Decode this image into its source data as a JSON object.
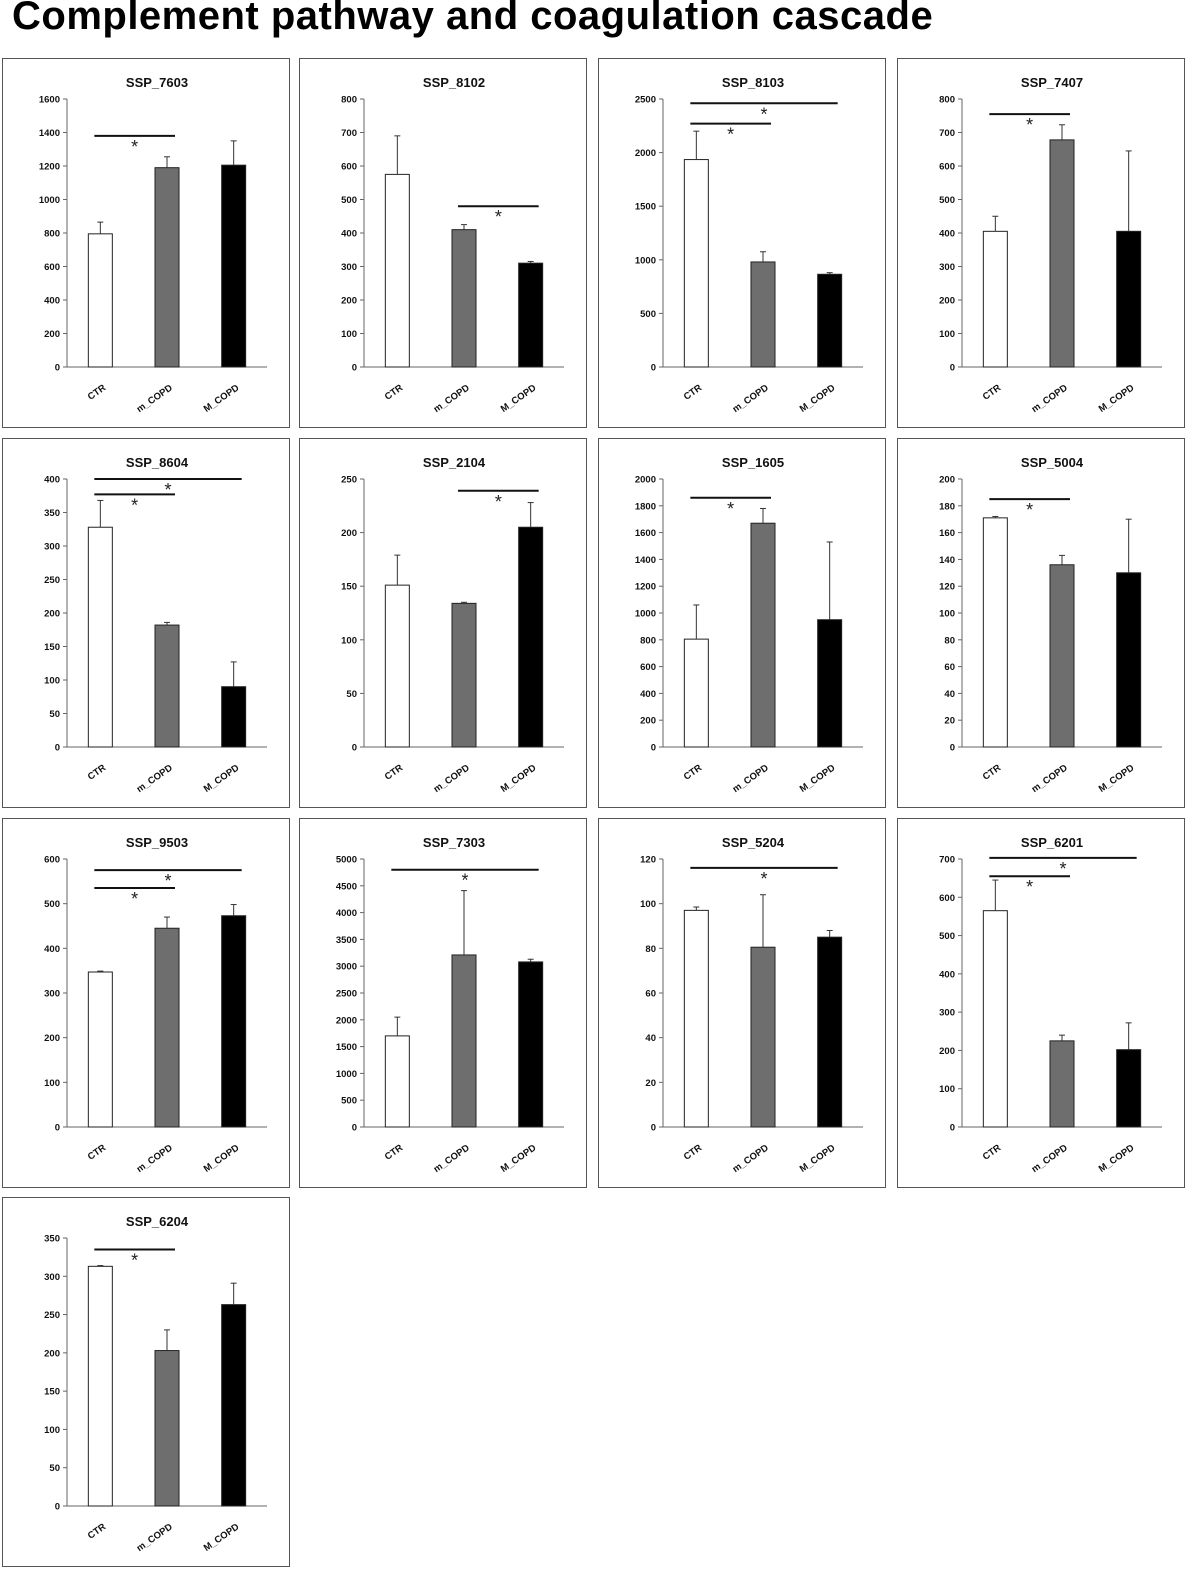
{
  "title": "Complement pathway and coagulation cascade",
  "bar_colors": {
    "CTR": "#ffffff",
    "m_COPD": "#6e6e6e",
    "M_COPD": "#000000"
  },
  "chart_data": [
    {
      "type": "bar",
      "title": "SSP_7603",
      "categories": [
        "CTR",
        "m_COPD",
        "M_COPD"
      ],
      "values": [
        795,
        1190,
        1205
      ],
      "errors": [
        70,
        65,
        145
      ],
      "ylim": [
        0,
        1600
      ],
      "yticks": [
        0,
        200,
        400,
        600,
        800,
        1000,
        1200,
        1400,
        1600
      ],
      "significance": [
        {
          "from": 0,
          "to": 1,
          "y": 1380,
          "label": "*"
        }
      ]
    },
    {
      "type": "bar",
      "title": "SSP_8102",
      "categories": [
        "CTR",
        "m_COPD",
        "M_COPD"
      ],
      "values": [
        575,
        410,
        310
      ],
      "errors": [
        115,
        15,
        5
      ],
      "ylim": [
        0,
        800
      ],
      "yticks": [
        0,
        100,
        200,
        300,
        400,
        500,
        600,
        700,
        800
      ],
      "significance": [
        {
          "from": 1,
          "to": 2,
          "y": 480,
          "label": "*"
        }
      ]
    },
    {
      "type": "bar",
      "title": "SSP_8103",
      "categories": [
        "CTR",
        "m_COPD",
        "M_COPD"
      ],
      "values": [
        1935,
        980,
        865
      ],
      "errors": [
        265,
        95,
        15
      ],
      "ylim": [
        0,
        2500
      ],
      "yticks": [
        0,
        500,
        1000,
        1500,
        2000,
        2500
      ],
      "significance": [
        {
          "from": 0,
          "to": 1,
          "y": 2270,
          "label": "*"
        },
        {
          "from": 0,
          "to": 2,
          "y": 2460,
          "label": "*"
        }
      ]
    },
    {
      "type": "bar",
      "title": "SSP_7407",
      "categories": [
        "CTR",
        "m_COPD",
        "M_COPD"
      ],
      "values": [
        405,
        678,
        405
      ],
      "errors": [
        45,
        45,
        240
      ],
      "ylim": [
        0,
        800
      ],
      "yticks": [
        0,
        100,
        200,
        300,
        400,
        500,
        600,
        700,
        800
      ],
      "significance": [
        {
          "from": 0,
          "to": 1,
          "y": 755,
          "label": "*"
        }
      ]
    },
    {
      "type": "bar",
      "title": "SSP_8604",
      "categories": [
        "CTR",
        "m_COPD",
        "M_COPD"
      ],
      "values": [
        328,
        182,
        90
      ],
      "errors": [
        40,
        4,
        37
      ],
      "ylim": [
        0,
        400
      ],
      "yticks": [
        0,
        50,
        100,
        150,
        200,
        250,
        300,
        350,
        400
      ],
      "significance": [
        {
          "from": 0,
          "to": 1,
          "y": 377,
          "label": "*"
        },
        {
          "from": 0,
          "to": 2,
          "y": 400,
          "label": "*"
        }
      ]
    },
    {
      "type": "bar",
      "title": "SSP_2104",
      "categories": [
        "CTR",
        "m_COPD",
        "M_COPD"
      ],
      "values": [
        151,
        134,
        205
      ],
      "errors": [
        28,
        1,
        23
      ],
      "ylim": [
        0,
        250
      ],
      "yticks": [
        0,
        50,
        100,
        150,
        200,
        250
      ],
      "significance": [
        {
          "from": 1,
          "to": 2,
          "y": 239,
          "label": "*"
        }
      ]
    },
    {
      "type": "bar",
      "title": "SSP_1605",
      "categories": [
        "CTR",
        "m_COPD",
        "M_COPD"
      ],
      "values": [
        805,
        1670,
        950
      ],
      "errors": [
        255,
        110,
        580
      ],
      "ylim": [
        0,
        2000
      ],
      "yticks": [
        0,
        200,
        400,
        600,
        800,
        1000,
        1200,
        1400,
        1600,
        1800,
        2000
      ],
      "significance": [
        {
          "from": 0,
          "to": 1,
          "y": 1860,
          "label": "*"
        }
      ]
    },
    {
      "type": "bar",
      "title": "SSP_5004",
      "categories": [
        "CTR",
        "m_COPD",
        "M_COPD"
      ],
      "values": [
        171,
        136,
        130
      ],
      "errors": [
        1,
        7,
        40
      ],
      "ylim": [
        0,
        200
      ],
      "yticks": [
        0,
        20,
        40,
        60,
        80,
        100,
        120,
        140,
        160,
        180,
        200
      ],
      "significance": [
        {
          "from": 0,
          "to": 1,
          "y": 185,
          "label": "*"
        }
      ]
    },
    {
      "type": "bar",
      "title": "SSP_9503",
      "categories": [
        "CTR",
        "m_COPD",
        "M_COPD"
      ],
      "values": [
        347,
        445,
        473
      ],
      "errors": [
        2,
        25,
        25
      ],
      "ylim": [
        0,
        600
      ],
      "yticks": [
        0,
        100,
        200,
        300,
        400,
        500,
        600
      ],
      "significance": [
        {
          "from": 0,
          "to": 1,
          "y": 535,
          "label": "*"
        },
        {
          "from": 0,
          "to": 2,
          "y": 575,
          "label": "*"
        }
      ]
    },
    {
      "type": "bar",
      "title": "SSP_7303",
      "categories": [
        "CTR",
        "m_COPD",
        "M_COPD"
      ],
      "values": [
        1700,
        3210,
        3080
      ],
      "errors": [
        350,
        1200,
        50
      ],
      "ylim": [
        0,
        5000
      ],
      "yticks": [
        0,
        500,
        1000,
        1500,
        2000,
        2500,
        3000,
        3500,
        4000,
        4500,
        5000
      ],
      "significance": [
        {
          "from": 0,
          "to": 2,
          "y": 4800,
          "label": "*"
        }
      ]
    },
    {
      "type": "bar",
      "title": "SSP_5204",
      "categories": [
        "CTR",
        "m_COPD",
        "M_COPD"
      ],
      "values": [
        97,
        80.5,
        85
      ],
      "errors": [
        1.5,
        23.5,
        3
      ],
      "ylim": [
        0,
        120
      ],
      "yticks": [
        0,
        20,
        40,
        60,
        80,
        100,
        120
      ],
      "significance": [
        {
          "from": 0,
          "to": 2,
          "y": 116,
          "label": "*"
        }
      ]
    },
    {
      "type": "bar",
      "title": "SSP_6201",
      "categories": [
        "CTR",
        "m_COPD",
        "M_COPD"
      ],
      "values": [
        565,
        225,
        202
      ],
      "errors": [
        80,
        15,
        70
      ],
      "ylim": [
        0,
        700
      ],
      "yticks": [
        0,
        100,
        200,
        300,
        400,
        500,
        600,
        700
      ],
      "significance": [
        {
          "from": 0,
          "to": 1,
          "y": 655,
          "label": "*"
        },
        {
          "from": 0,
          "to": 2,
          "y": 703,
          "label": "*"
        }
      ]
    },
    {
      "type": "bar",
      "title": "SSP_6204",
      "categories": [
        "CTR",
        "m_COPD",
        "M_COPD"
      ],
      "values": [
        313,
        203,
        263
      ],
      "errors": [
        1,
        27,
        28
      ],
      "ylim": [
        0,
        350
      ],
      "yticks": [
        0,
        50,
        100,
        150,
        200,
        250,
        300,
        350
      ],
      "significance": [
        {
          "from": 0,
          "to": 1,
          "y": 335,
          "label": "*"
        }
      ]
    }
  ]
}
